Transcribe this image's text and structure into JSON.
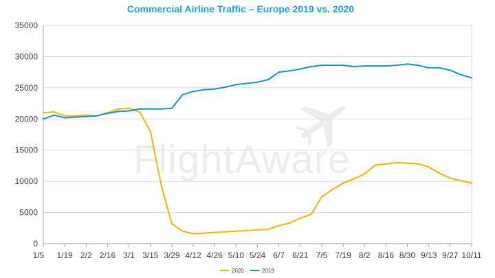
{
  "watermark": "FlightAware",
  "colors": {
    "title": "#1aa3dc",
    "series_2020": "#f5b400",
    "series_2019": "#1593c9",
    "grid": "#d9d9d9",
    "axis": "#a6a6a6"
  },
  "chart_data": {
    "type": "line",
    "title": "Commercial Airline Traffic – Europe 2019 vs. 2020",
    "xlabel": "",
    "ylabel": "",
    "ylim": [
      0,
      35000
    ],
    "yticks": [
      0,
      5000,
      10000,
      15000,
      20000,
      25000,
      30000,
      35000
    ],
    "ytick_labels": [
      "0",
      "5000",
      "10000",
      "15000",
      "20000",
      "25000",
      "30000",
      "35000"
    ],
    "grid": true,
    "legend": "bottom-center",
    "xtick_labels": [
      "1/5",
      "1/19",
      "2/2",
      "2/16",
      "3/1",
      "3/15",
      "3/29",
      "4/12",
      "4/26",
      "5/10",
      "5/24",
      "6/7",
      "6/21",
      "7/5",
      "7/19",
      "8/2",
      "8/16",
      "8/30",
      "9/13",
      "9/27",
      "10/11"
    ],
    "x": [
      "1/5",
      "1/12",
      "1/19",
      "1/26",
      "2/2",
      "2/9",
      "2/16",
      "2/23",
      "3/1",
      "3/8",
      "3/15",
      "3/22",
      "3/29",
      "4/5",
      "4/12",
      "4/19",
      "4/26",
      "5/3",
      "5/10",
      "5/17",
      "5/24",
      "5/31",
      "6/7",
      "6/14",
      "6/21",
      "6/28",
      "7/5",
      "7/12",
      "7/19",
      "7/26",
      "8/2",
      "8/9",
      "8/16",
      "8/23",
      "8/30",
      "9/6",
      "9/13",
      "9/20",
      "9/27",
      "10/4",
      "10/11"
    ],
    "series": [
      {
        "name": "2020",
        "values": [
          21000,
          21100,
          20500,
          20500,
          20600,
          20500,
          21000,
          21600,
          21700,
          21100,
          18000,
          9500,
          3200,
          2000,
          1600,
          1700,
          1800,
          1900,
          2000,
          2100,
          2200,
          2300,
          2900,
          3300,
          4100,
          4700,
          7500,
          8700,
          9700,
          10400,
          11200,
          12600,
          12800,
          13000,
          12900,
          12800,
          12300,
          11300,
          10500,
          10100,
          9700
        ]
      },
      {
        "name": "2019",
        "values": [
          20000,
          20600,
          20200,
          20300,
          20400,
          20500,
          20900,
          21200,
          21300,
          21600,
          21600,
          21600,
          21700,
          23900,
          24400,
          24700,
          24800,
          25100,
          25500,
          25700,
          25900,
          26300,
          27500,
          27700,
          28000,
          28400,
          28600,
          28600,
          28600,
          28400,
          28500,
          28500,
          28500,
          28600,
          28800,
          28600,
          28200,
          28200,
          27800,
          27100,
          26600
        ]
      }
    ]
  }
}
